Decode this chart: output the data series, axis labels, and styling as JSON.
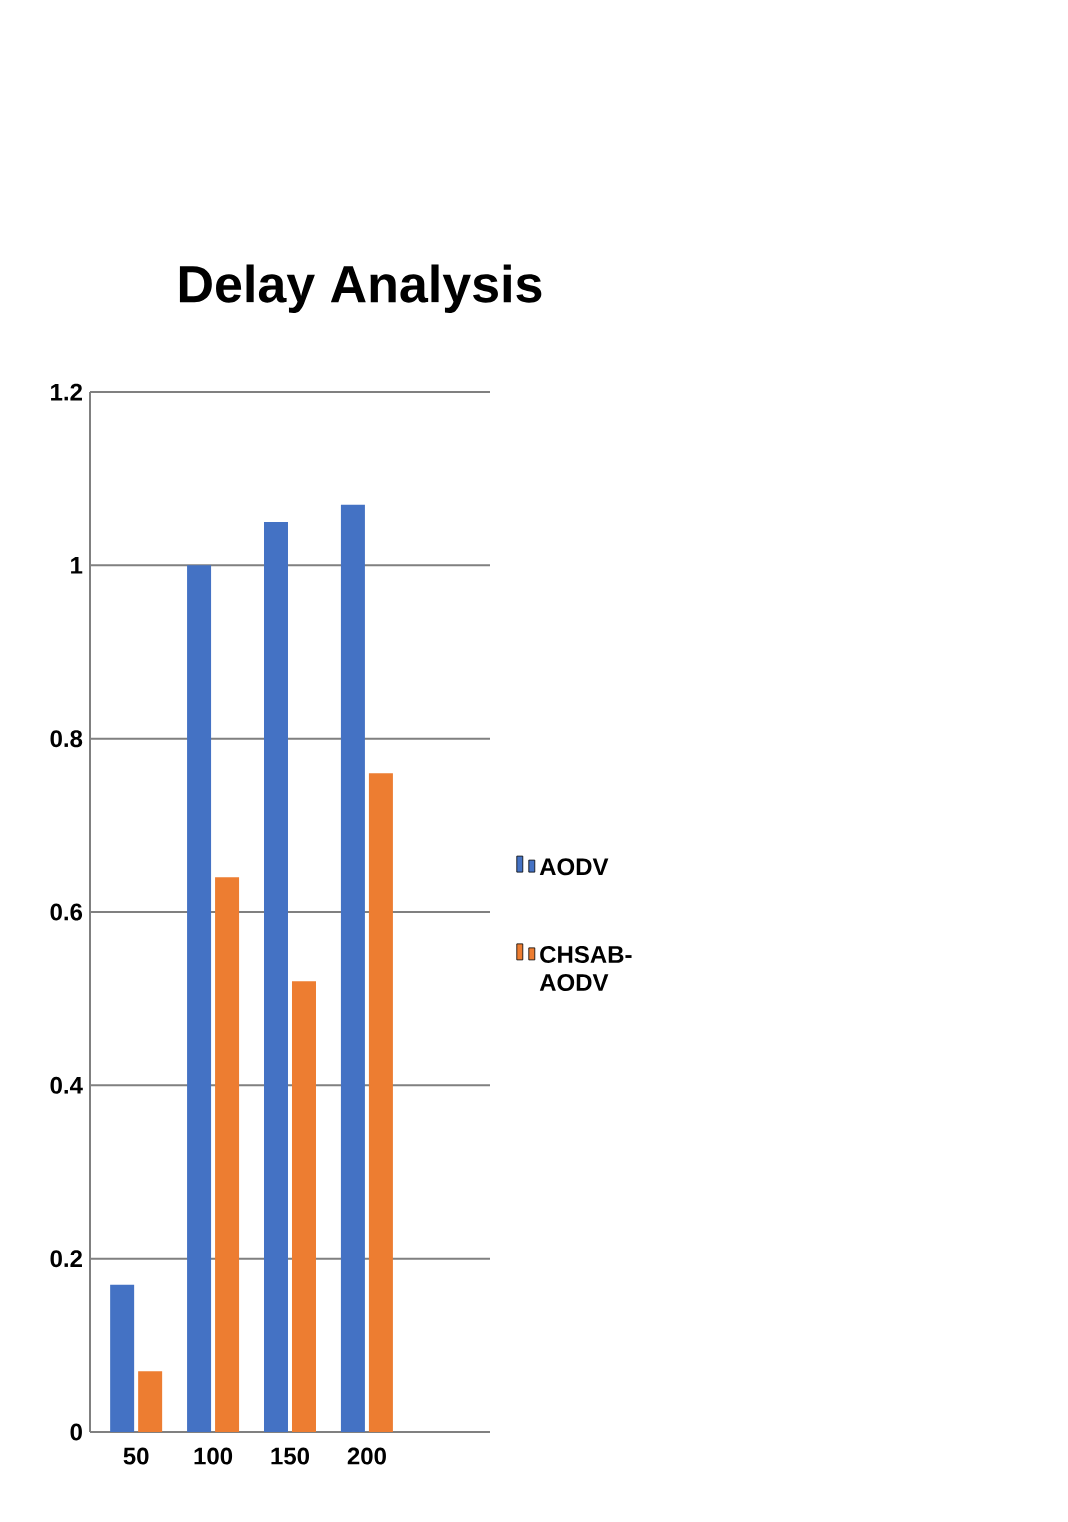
{
  "chart_data": {
    "type": "bar",
    "title": "Delay Analysis",
    "categories": [
      "50",
      "100",
      "150",
      "200"
    ],
    "series": [
      {
        "name": "AODV",
        "color": "#4472c4",
        "values": [
          0.17,
          1.0,
          1.05,
          1.07
        ]
      },
      {
        "name": "CHSAB-AODV",
        "color": "#ed7d31",
        "values": [
          0.07,
          0.64,
          0.52,
          0.76
        ]
      }
    ],
    "ylim": [
      0,
      1.2
    ],
    "yticks": [
      0,
      0.2,
      0.4,
      0.6,
      0.8,
      1,
      1.2
    ],
    "grid": "y",
    "legend": "right"
  }
}
